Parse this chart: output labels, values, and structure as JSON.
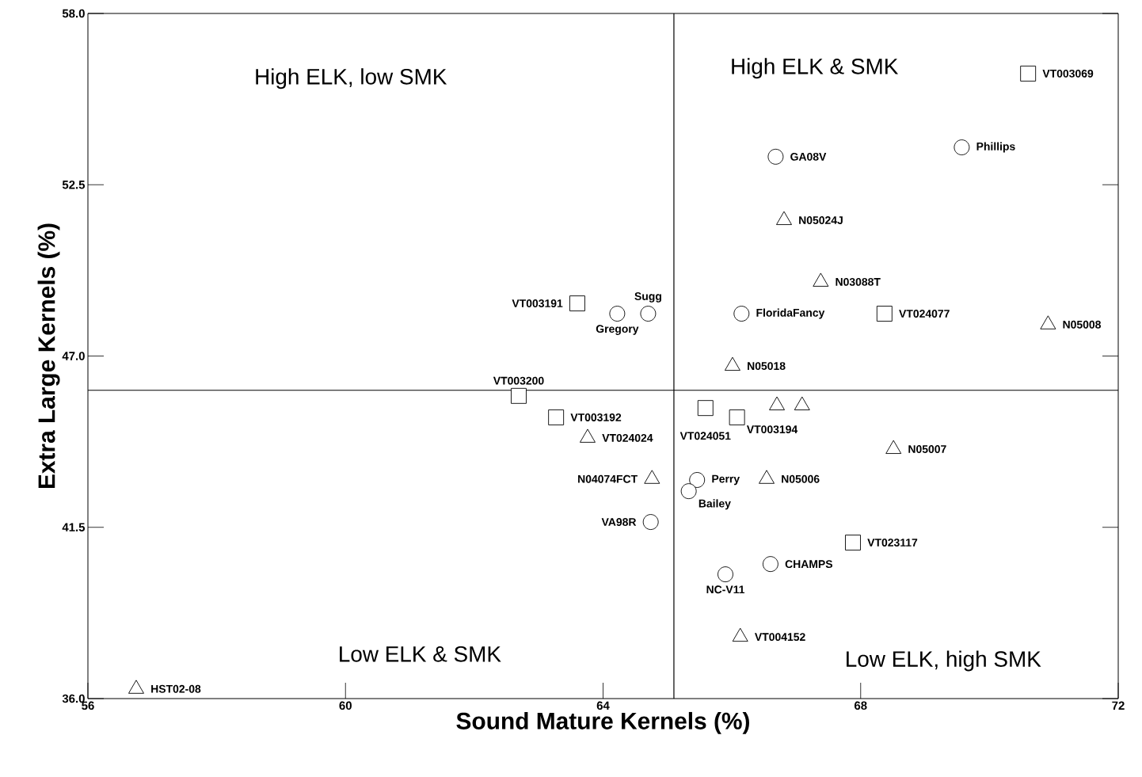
{
  "chart_data": {
    "type": "scatter",
    "xlabel": "Sound Mature Kernels (%)",
    "ylabel": "Extra Large Kernels (%)",
    "xlim": [
      56,
      72
    ],
    "ylim": [
      36,
      58
    ],
    "xticks": [
      56,
      60,
      64,
      68,
      72
    ],
    "yticks": [
      {
        "value": 36,
        "label": "36.0"
      },
      {
        "value": 41.5,
        "label": "41.5"
      },
      {
        "value": 47,
        "label": "47.0"
      },
      {
        "value": 52.5,
        "label": "52.5"
      },
      {
        "value": 58,
        "label": "58.0"
      }
    ],
    "grid": false,
    "ref_lines": [
      {
        "axis": "x",
        "value": 65.1
      },
      {
        "axis": "y",
        "value": 45.9
      }
    ],
    "annotations": [
      "High ELK, low SMK",
      "High ELK & SMK",
      "Low ELK & SMK",
      "Low ELK, high SMK"
    ],
    "series": [
      {
        "marker": "square",
        "color": "#000000",
        "x": [
          70.6,
          63.6,
          68.37,
          62.69,
          63.27,
          65.59,
          66.08,
          67.88
        ],
        "values": [
          56.07,
          48.69,
          48.36,
          45.72,
          45.03,
          45.33,
          45.03,
          41.01
        ],
        "value_labels": [
          "VT003069",
          "VT003191",
          "VT024077",
          "VT003200",
          "VT003192",
          "VT024051",
          "VT003194",
          "VT023117"
        ]
      },
      {
        "marker": "circle",
        "color": "#000000",
        "x": [
          69.57,
          66.68,
          64.22,
          64.7,
          66.15,
          65.46,
          65.33,
          64.74,
          66.6,
          65.9
        ],
        "values": [
          53.7,
          53.4,
          48.36,
          48.36,
          48.36,
          43.02,
          42.66,
          41.67,
          40.32,
          39.99
        ],
        "value_labels": [
          "Phillips",
          "GA08V",
          "Gregory",
          "Sugg",
          "FloridaFancy",
          "Perry",
          "Bailey",
          "VA98R",
          "CHAMPS",
          "NC-V11"
        ]
      },
      {
        "marker": "triangle",
        "color": "#000000",
        "x": [
          66.81,
          67.38,
          70.91,
          66.01,
          63.76,
          68.51,
          64.76,
          66.54,
          66.13,
          56.75,
          66.7,
          67.09
        ],
        "values": [
          51.36,
          49.38,
          48.01,
          46.68,
          44.37,
          44.01,
          43.05,
          43.05,
          37.98,
          36.31,
          45.41,
          45.41
        ],
        "value_labels": [
          "N05024J",
          "N03088T",
          "N05008",
          "N05018",
          "VT024024",
          "N05007",
          "N04074FCT",
          "N05006",
          "VT004152",
          "HST02-08",
          null,
          null
        ]
      }
    ]
  }
}
